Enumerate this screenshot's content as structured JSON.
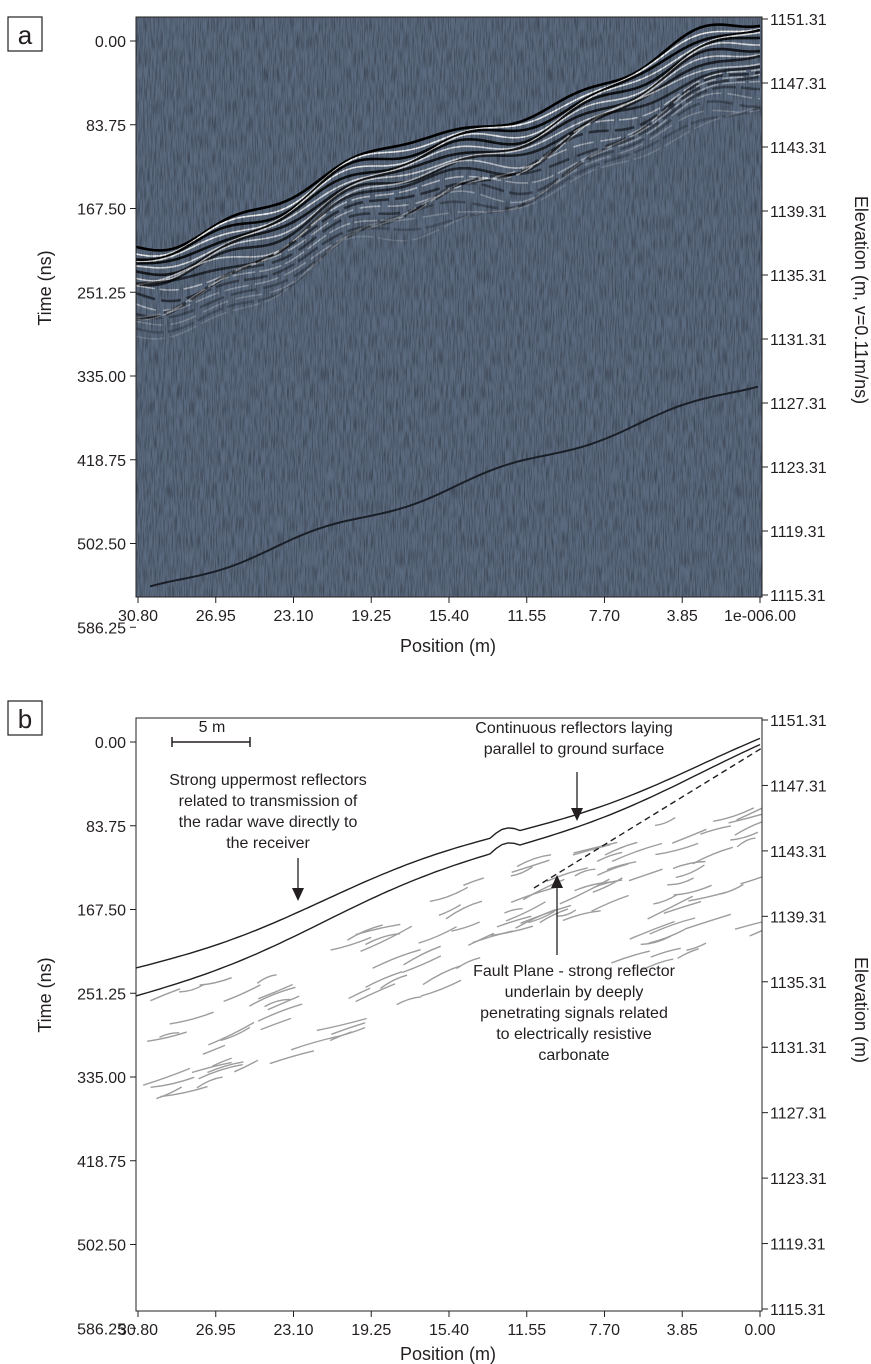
{
  "figure": {
    "panels": [
      {
        "panel_label": "a",
        "image_type": "radargram",
        "colors": {
          "background": "#5b6a7f",
          "signal_dark": "#000000",
          "signal_light": "#ffffff"
        },
        "y_left_label": "Time (ns)",
        "y_left_ticks": [
          "0.00",
          "83.75",
          "167.50",
          "251.25",
          "335.00",
          "418.75",
          "502.50",
          "586.25"
        ],
        "y_right_label": "Elevation (m, v=0.11m/ns)",
        "y_right_ticks": [
          "1151.31",
          "1147.31",
          "1143.31",
          "1139.31",
          "1135.31",
          "1131.31",
          "1127.31",
          "1123.31",
          "1119.31",
          "1115.31"
        ],
        "x_label": "Position (m)",
        "x_ticks": [
          "30.80",
          "26.95",
          "23.10",
          "19.25",
          "15.40",
          "11.55",
          "7.70",
          "3.85",
          "1e-006.00"
        ]
      },
      {
        "panel_label": "b",
        "image_type": "interpretation line drawing",
        "colors": {
          "surface_line": "#231f20",
          "reflector_line": "#9d9d9d"
        },
        "y_left_label": "Time (ns)",
        "y_left_ticks": [
          "0.00",
          "83.75",
          "167.50",
          "251.25",
          "335.00",
          "418.75",
          "502.50",
          "586.25"
        ],
        "y_right_label": "Elevation (m)",
        "y_right_ticks": [
          "1151.31",
          "1147.31",
          "1143.31",
          "1139.31",
          "1135.31",
          "1131.31",
          "1127.31",
          "1123.31",
          "1119.31",
          "1115.31"
        ],
        "x_label": "Position (m)",
        "x_ticks": [
          "30.80",
          "26.95",
          "23.10",
          "19.25",
          "15.40",
          "11.55",
          "7.70",
          "3.85",
          "0.00"
        ],
        "scale_bar_label": "5 m",
        "annotations": [
          {
            "lines": [
              "Strong uppermost reflectors",
              "related to transmission of",
              "the radar wave directly to",
              "the receiver"
            ]
          },
          {
            "lines": [
              "Continuous reflectors laying",
              "parallel to ground surface"
            ]
          },
          {
            "lines": [
              "Fault Plane - strong reflector",
              "underlain by deeply",
              "penetrating signals related",
              "to electrically resistive",
              "carbonate"
            ]
          }
        ]
      }
    ]
  }
}
